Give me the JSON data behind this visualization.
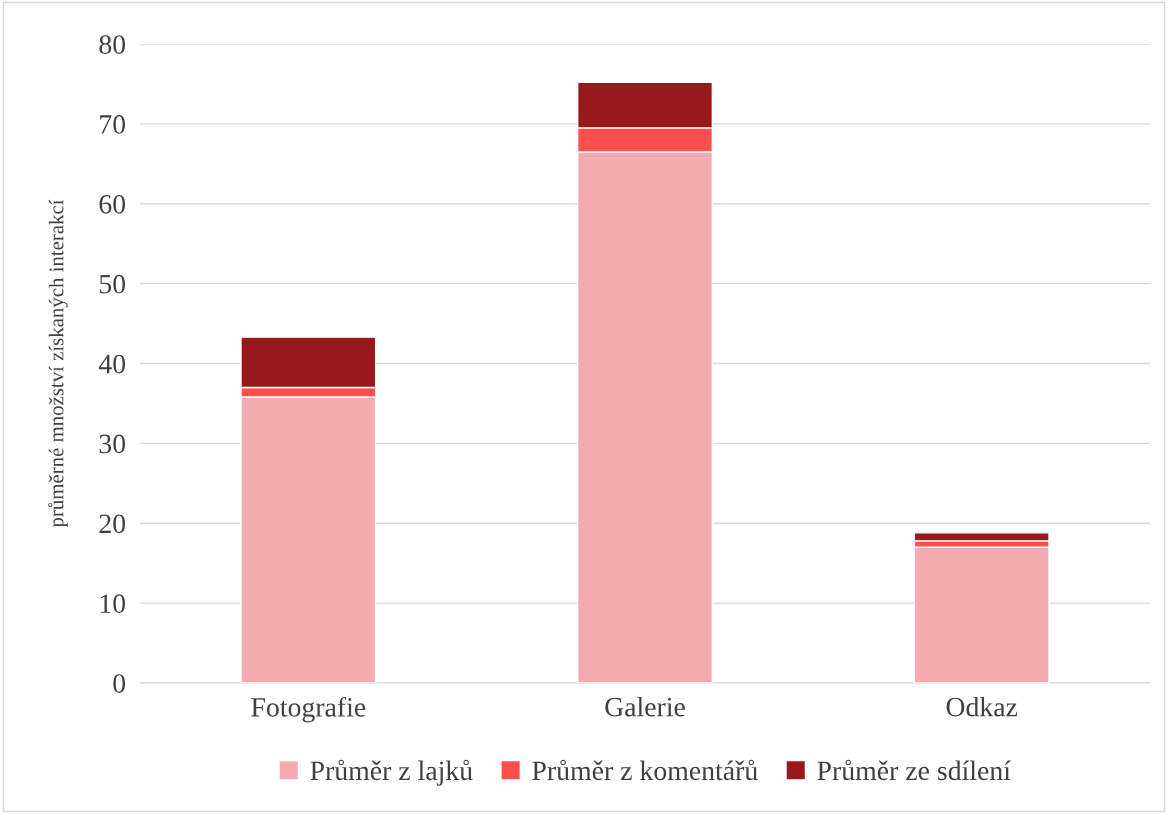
{
  "chart_data": {
    "type": "bar",
    "stacked": true,
    "ylabel": "průměrné množství získaných interakcí",
    "categories": [
      "Fotografie",
      "Galerie",
      "Odkaz"
    ],
    "series": [
      {
        "name": "Průměr z lajků",
        "color": "#f3aab0",
        "values": [
          35.8,
          66.5,
          17.0
        ]
      },
      {
        "name": "Průměr z komentářů",
        "color": "#fe4f4d",
        "values": [
          1.2,
          3.0,
          0.8
        ]
      },
      {
        "name": "Průměr ze sdílení",
        "color": "#99181c",
        "values": [
          6.3,
          5.7,
          1.0
        ]
      }
    ],
    "ylim": [
      0,
      80
    ],
    "yticks": [
      0,
      10,
      20,
      30,
      40,
      50,
      60,
      70,
      80
    ],
    "grid": "y",
    "legend": "bottom"
  }
}
